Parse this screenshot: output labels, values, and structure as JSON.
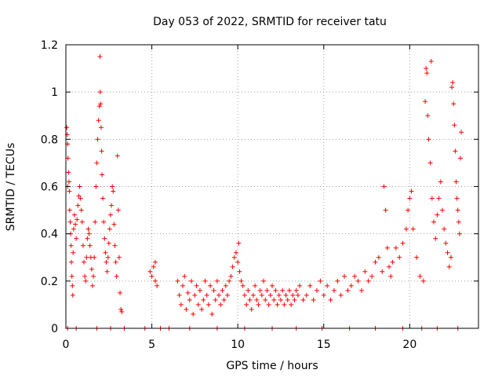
{
  "chart_data": {
    "type": "scatter",
    "title": "Day 053 of 2022, SRMTID for receiver tatu",
    "xlabel": "GPS time / hours",
    "ylabel": "SRMTID / TECUs",
    "xlim": [
      0,
      24
    ],
    "ylim": [
      0,
      1.2
    ],
    "xticks": [
      0,
      5,
      10,
      15,
      20
    ],
    "yticks": [
      0,
      0.2,
      0.4,
      0.6,
      0.8,
      1.0,
      1.2
    ],
    "xtick_labels": [
      "0",
      "5",
      "10",
      "15",
      "20"
    ],
    "ytick_labels": [
      "0",
      "0.2",
      "0.4",
      "0.6",
      "0.8",
      "1",
      "1.2"
    ],
    "grid": true,
    "marker": "+",
    "series": [
      {
        "name": "SRMTID",
        "color": "#ff0000",
        "points": [
          [
            0.05,
            0.85
          ],
          [
            0.08,
            0.82
          ],
          [
            0.1,
            0.78
          ],
          [
            0.12,
            0.72
          ],
          [
            0.15,
            0.66
          ],
          [
            0.18,
            0.62
          ],
          [
            0.2,
            0.58
          ],
          [
            0.1,
            0.6
          ],
          [
            0.22,
            0.5
          ],
          [
            0.25,
            0.45
          ],
          [
            0.28,
            0.4
          ],
          [
            0.3,
            0.35
          ],
          [
            0.32,
            0.28
          ],
          [
            0.35,
            0.22
          ],
          [
            0.38,
            0.18
          ],
          [
            0.4,
            0.14
          ],
          [
            0.42,
            0.32
          ],
          [
            0.45,
            0.42
          ],
          [
            0.5,
            0.48
          ],
          [
            0.55,
            0.44
          ],
          [
            0.6,
            0.38
          ],
          [
            0.65,
            0.46
          ],
          [
            0.7,
            0.52
          ],
          [
            0.75,
            0.56
          ],
          [
            0.8,
            0.6
          ],
          [
            0.85,
            0.55
          ],
          [
            0.9,
            0.5
          ],
          [
            0.95,
            0.45
          ],
          [
            1.0,
            0.35
          ],
          [
            1.05,
            0.28
          ],
          [
            1.1,
            0.22
          ],
          [
            1.15,
            0.2
          ],
          [
            1.2,
            0.3
          ],
          [
            1.25,
            0.38
          ],
          [
            1.3,
            0.42
          ],
          [
            1.35,
            0.4
          ],
          [
            1.4,
            0.35
          ],
          [
            1.45,
            0.3
          ],
          [
            1.5,
            0.25
          ],
          [
            1.55,
            0.18
          ],
          [
            1.6,
            0.22
          ],
          [
            1.65,
            0.3
          ],
          [
            1.7,
            0.45
          ],
          [
            1.75,
            0.6
          ],
          [
            1.8,
            0.7
          ],
          [
            1.85,
            0.8
          ],
          [
            1.9,
            0.88
          ],
          [
            1.95,
            0.94
          ],
          [
            2.0,
            1.0
          ],
          [
            1.98,
            1.15
          ],
          [
            2.02,
            0.95
          ],
          [
            2.05,
            0.85
          ],
          [
            2.08,
            0.75
          ],
          [
            2.1,
            0.65
          ],
          [
            2.15,
            0.55
          ],
          [
            2.2,
            0.45
          ],
          [
            2.25,
            0.38
          ],
          [
            2.3,
            0.32
          ],
          [
            2.35,
            0.28
          ],
          [
            2.4,
            0.24
          ],
          [
            2.45,
            0.3
          ],
          [
            2.5,
            0.36
          ],
          [
            2.55,
            0.42
          ],
          [
            2.6,
            0.48
          ],
          [
            2.65,
            0.52
          ],
          [
            2.7,
            0.6
          ],
          [
            2.75,
            0.58
          ],
          [
            2.8,
            0.44
          ],
          [
            2.85,
            0.35
          ],
          [
            2.9,
            0.28
          ],
          [
            2.95,
            0.22
          ],
          [
            3.0,
            0.73
          ],
          [
            3.05,
            0.5
          ],
          [
            3.1,
            0.3
          ],
          [
            3.15,
            0.15
          ],
          [
            3.2,
            0.08
          ],
          [
            3.25,
            0.07
          ],
          [
            4.9,
            0.24
          ],
          [
            5.0,
            0.22
          ],
          [
            5.1,
            0.26
          ],
          [
            5.2,
            0.2
          ],
          [
            5.3,
            0.18
          ],
          [
            5.2,
            0.28
          ],
          [
            6.5,
            0.2
          ],
          [
            6.6,
            0.14
          ],
          [
            6.7,
            0.1
          ],
          [
            6.8,
            0.18
          ],
          [
            6.9,
            0.22
          ],
          [
            7.0,
            0.08
          ],
          [
            7.1,
            0.15
          ],
          [
            7.2,
            0.12
          ],
          [
            7.3,
            0.2
          ],
          [
            7.4,
            0.06
          ],
          [
            7.5,
            0.14
          ],
          [
            7.6,
            0.18
          ],
          [
            7.7,
            0.1
          ],
          [
            7.8,
            0.16
          ],
          [
            7.9,
            0.08
          ],
          [
            8.0,
            0.12
          ],
          [
            8.1,
            0.2
          ],
          [
            8.2,
            0.14
          ],
          [
            8.3,
            0.1
          ],
          [
            8.4,
            0.18
          ],
          [
            8.5,
            0.06
          ],
          [
            8.6,
            0.16
          ],
          [
            8.7,
            0.12
          ],
          [
            8.8,
            0.2
          ],
          [
            8.9,
            0.14
          ],
          [
            9.0,
            0.1
          ],
          [
            9.1,
            0.16
          ],
          [
            9.2,
            0.12
          ],
          [
            9.3,
            0.18
          ],
          [
            9.4,
            0.14
          ],
          [
            9.5,
            0.2
          ],
          [
            9.6,
            0.22
          ],
          [
            9.7,
            0.26
          ],
          [
            9.8,
            0.3
          ],
          [
            9.9,
            0.32
          ],
          [
            10.0,
            0.28
          ],
          [
            10.05,
            0.36
          ],
          [
            10.1,
            0.24
          ],
          [
            10.2,
            0.2
          ],
          [
            10.3,
            0.18
          ],
          [
            10.4,
            0.14
          ],
          [
            10.5,
            0.1
          ],
          [
            10.6,
            0.16
          ],
          [
            10.7,
            0.12
          ],
          [
            10.8,
            0.08
          ],
          [
            10.9,
            0.14
          ],
          [
            11.0,
            0.18
          ],
          [
            11.1,
            0.12
          ],
          [
            11.2,
            0.1
          ],
          [
            11.3,
            0.16
          ],
          [
            11.4,
            0.14
          ],
          [
            11.5,
            0.2
          ],
          [
            11.6,
            0.12
          ],
          [
            11.7,
            0.16
          ],
          [
            11.8,
            0.1
          ],
          [
            11.9,
            0.14
          ],
          [
            12.0,
            0.18
          ],
          [
            12.1,
            0.12
          ],
          [
            12.2,
            0.16
          ],
          [
            12.3,
            0.1
          ],
          [
            12.4,
            0.14
          ],
          [
            12.5,
            0.12
          ],
          [
            12.6,
            0.16
          ],
          [
            12.7,
            0.1
          ],
          [
            12.8,
            0.14
          ],
          [
            12.9,
            0.12
          ],
          [
            13.0,
            0.16
          ],
          [
            13.1,
            0.1
          ],
          [
            13.2,
            0.14
          ],
          [
            13.3,
            0.12
          ],
          [
            13.4,
            0.16
          ],
          [
            13.5,
            0.14
          ],
          [
            13.6,
            0.18
          ],
          [
            13.8,
            0.12
          ],
          [
            14.0,
            0.14
          ],
          [
            14.2,
            0.18
          ],
          [
            14.4,
            0.12
          ],
          [
            14.6,
            0.16
          ],
          [
            14.8,
            0.2
          ],
          [
            15.0,
            0.14
          ],
          [
            15.2,
            0.18
          ],
          [
            15.4,
            0.12
          ],
          [
            15.6,
            0.16
          ],
          [
            15.8,
            0.2
          ],
          [
            16.0,
            0.14
          ],
          [
            16.2,
            0.22
          ],
          [
            16.4,
            0.16
          ],
          [
            16.6,
            0.18
          ],
          [
            16.8,
            0.22
          ],
          [
            17.0,
            0.2
          ],
          [
            17.2,
            0.16
          ],
          [
            17.4,
            0.24
          ],
          [
            17.6,
            0.2
          ],
          [
            17.8,
            0.22
          ],
          [
            18.0,
            0.28
          ],
          [
            18.2,
            0.3
          ],
          [
            18.4,
            0.24
          ],
          [
            18.5,
            0.6
          ],
          [
            18.6,
            0.5
          ],
          [
            18.7,
            0.34
          ],
          [
            18.8,
            0.26
          ],
          [
            18.9,
            0.22
          ],
          [
            19.0,
            0.28
          ],
          [
            19.2,
            0.34
          ],
          [
            19.4,
            0.3
          ],
          [
            19.6,
            0.36
          ],
          [
            19.8,
            0.42
          ],
          [
            19.9,
            0.5
          ],
          [
            20.0,
            0.55
          ],
          [
            20.1,
            0.58
          ],
          [
            20.2,
            0.42
          ],
          [
            20.4,
            0.3
          ],
          [
            20.6,
            0.22
          ],
          [
            20.8,
            0.2
          ],
          [
            20.9,
            0.96
          ],
          [
            20.95,
            1.1
          ],
          [
            21.0,
            1.08
          ],
          [
            21.05,
            0.9
          ],
          [
            21.1,
            0.8
          ],
          [
            21.2,
            0.7
          ],
          [
            21.25,
            1.13
          ],
          [
            21.3,
            0.55
          ],
          [
            21.4,
            0.45
          ],
          [
            21.5,
            0.38
          ],
          [
            21.6,
            0.48
          ],
          [
            21.7,
            0.55
          ],
          [
            21.8,
            0.62
          ],
          [
            21.9,
            0.5
          ],
          [
            22.0,
            0.42
          ],
          [
            22.1,
            0.36
          ],
          [
            22.2,
            0.32
          ],
          [
            22.3,
            0.26
          ],
          [
            22.4,
            0.3
          ],
          [
            22.45,
            1.02
          ],
          [
            22.5,
            1.04
          ],
          [
            22.55,
            0.95
          ],
          [
            22.6,
            0.86
          ],
          [
            22.65,
            0.75
          ],
          [
            22.7,
            0.62
          ],
          [
            22.75,
            0.55
          ],
          [
            22.8,
            0.5
          ],
          [
            22.85,
            0.45
          ],
          [
            22.9,
            0.4
          ],
          [
            22.95,
            0.72
          ],
          [
            23.0,
            0.83
          ],
          [
            0.1,
            0.0
          ],
          [
            0.6,
            0.0
          ],
          [
            1.8,
            0.0
          ],
          [
            2.6,
            0.0
          ],
          [
            3.4,
            0.0
          ],
          [
            4.6,
            0.0
          ],
          [
            5.5,
            0.0
          ],
          [
            6.0,
            0.0
          ],
          [
            7.2,
            0.0
          ],
          [
            8.8,
            0.0
          ],
          [
            10.4,
            0.0
          ],
          [
            12.0,
            0.0
          ],
          [
            13.4,
            0.0
          ],
          [
            14.9,
            0.0
          ],
          [
            16.5,
            0.0
          ],
          [
            18.0,
            0.0
          ],
          [
            19.6,
            0.0
          ],
          [
            20.7,
            0.0
          ],
          [
            21.6,
            0.0
          ],
          [
            22.8,
            0.0
          ]
        ]
      }
    ]
  }
}
